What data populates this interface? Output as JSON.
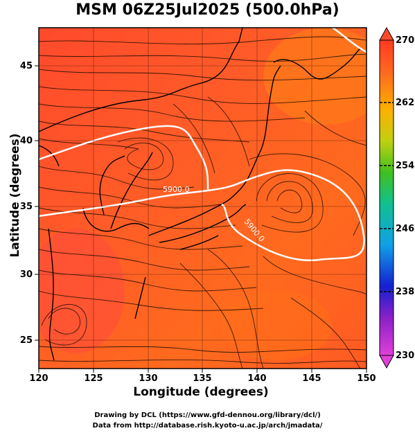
{
  "title": "MSM 06Z25Jul2025 (500.0hPa)",
  "xlabel": "Longitude (degrees)",
  "ylabel": "Latitude  (degrees)",
  "footer": {
    "line1": "Drawing by DCL (https://www.gfd-dennou.org/library/dcl/)",
    "line2": "Data from http://database.rish.kyoto-u.ac.jp/arch/jmadata/"
  },
  "map": {
    "lon_range": [
      120,
      150
    ],
    "lat_range": [
      22.4,
      47.6
    ],
    "x_ticks": [
      "120",
      "125",
      "130",
      "135",
      "140",
      "145",
      "150"
    ],
    "y_ticks": [
      "25",
      "30",
      "35",
      "40",
      "45"
    ],
    "gridlines": true,
    "contour_labels": [
      "5900.0",
      "5900.0"
    ],
    "field_color": "#ff5a2a",
    "coast_color": "#000000",
    "contour_color": "#ffffff"
  },
  "colorbar": {
    "range": [
      230,
      270
    ],
    "tick_labels": [
      "270",
      "262",
      "254",
      "246",
      "238",
      "230"
    ],
    "colors": [
      "#e040d8",
      "#7020c0",
      "#1020d0",
      "#10a0e0",
      "#10c080",
      "#50c020",
      "#c0d010",
      "#ffb000",
      "#ff6a20",
      "#ff3a20"
    ]
  }
}
